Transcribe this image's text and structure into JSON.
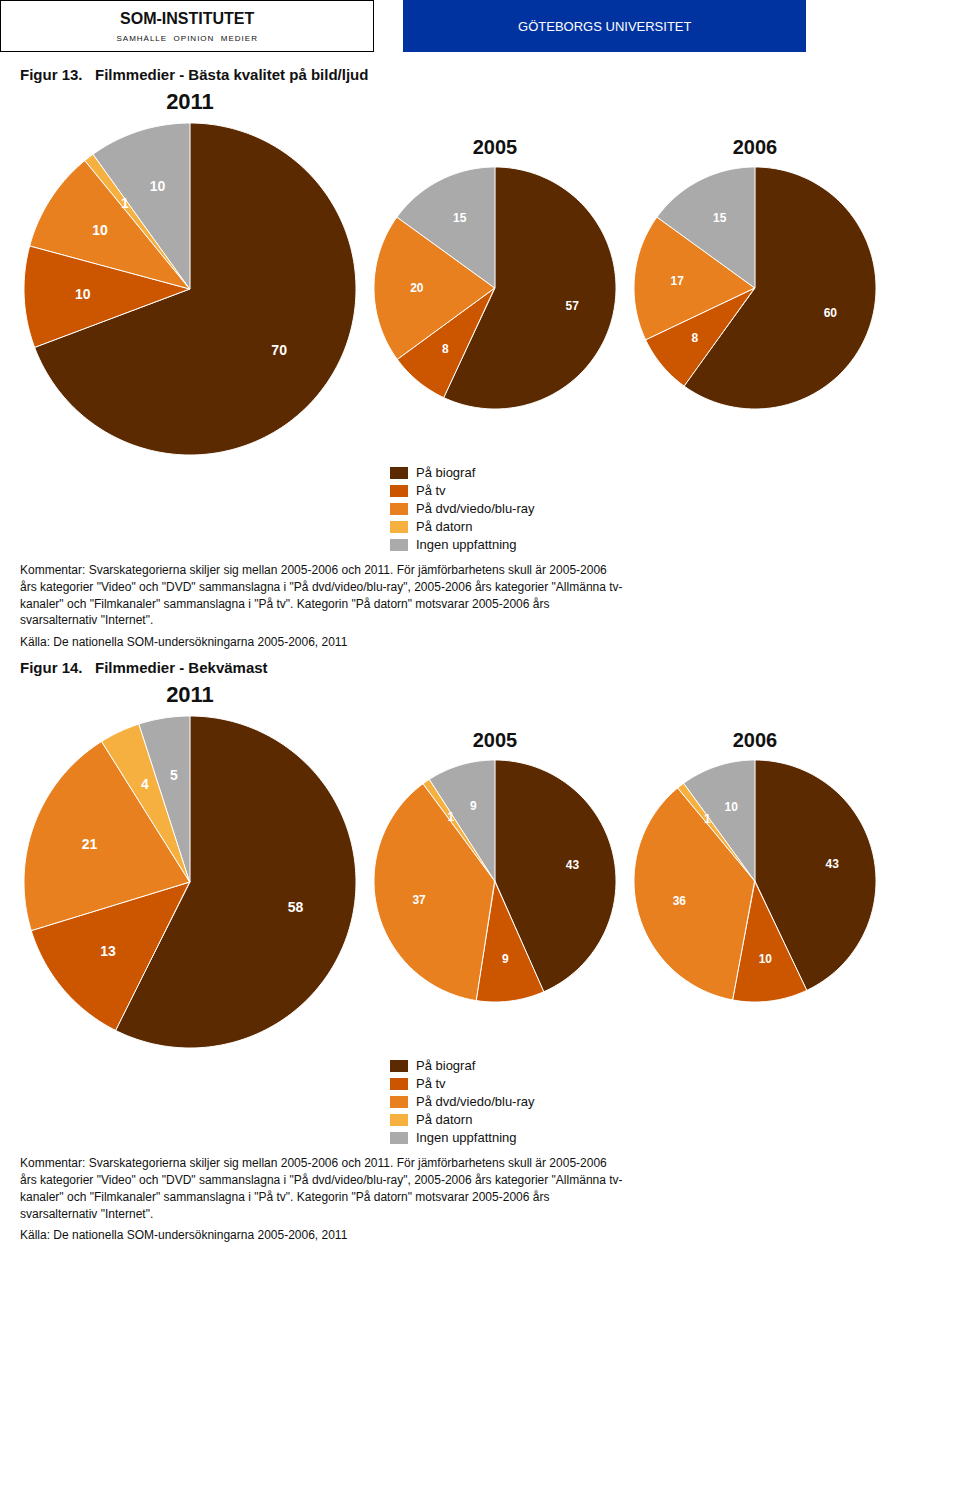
{
  "chart_data": [
    {
      "type": "pie",
      "title": "2011",
      "categories": [
        "På biograf",
        "På tv",
        "På dvd/viedo/blu-ray",
        "På datorn",
        "Ingen uppfattning"
      ],
      "values": [
        70,
        10,
        10,
        1,
        10
      ],
      "colors": [
        "#5C2A00",
        "#CC5500",
        "#E88020",
        "#F5B040",
        "#AAAAAA"
      ],
      "data_labels": true,
      "legend": "bottom",
      "annotations": [
        "SOM-INSTITUTET",
        "SAMHÄLLE  OPINION  MEDIER",
        "GÖTEBORGS UNIVERSITET",
        "Figur 13.   Filmmedier - Bästa kvalitet på bild/ljud",
        "Kommentar: Svarskategorierna skiljer sig mellan 2005-2006 och 2011. För jämförbarhetens skull är 2005-2006\nårs kategorier \"Video\" och \"DVD\" sammanslagna i \"På dvd/video/blu-ray\", 2005-2006 års kategorier \"Allmänna tv-\nkanaler\" och \"Filmkanaler\" sammanslagna i \"På tv\". Kategorin \"På datorn\" motsvarar 2005-2006 års\nsvarsalternativ \"Internet\".",
        "Källa: De nationella SOM-undersökningarna 2005-2006, 2011"
      ]
    },
    {
      "type": "pie",
      "title": "2005",
      "categories": [
        "På biograf",
        "På tv",
        "På dvd/viedo/blu-ray",
        "På datorn",
        "Ingen uppfattning"
      ],
      "values": [
        57,
        8,
        20,
        0,
        15
      ],
      "colors": [
        "#5C2A00",
        "#CC5500",
        "#E88020",
        "#F5B040",
        "#AAAAAA"
      ],
      "data_labels": true
    },
    {
      "type": "pie",
      "title": "2006",
      "categories": [
        "På biograf",
        "På tv",
        "På dvd/viedo/blu-ray",
        "På datorn",
        "Ingen uppfattning"
      ],
      "values": [
        60,
        8,
        17,
        0,
        15
      ],
      "colors": [
        "#5C2A00",
        "#CC5500",
        "#E88020",
        "#F5B040",
        "#AAAAAA"
      ],
      "data_labels": true
    },
    {
      "type": "pie",
      "title": "2011",
      "categories": [
        "På biograf",
        "På tv",
        "På dvd/viedo/blu-ray",
        "På datorn",
        "Ingen uppfattning"
      ],
      "values": [
        58,
        13,
        21,
        4,
        5
      ],
      "colors": [
        "#5C2A00",
        "#CC5500",
        "#E88020",
        "#F5B040",
        "#AAAAAA"
      ],
      "data_labels": true,
      "legend": "bottom",
      "annotations": [
        "Figur 14.   Filmmedier - Bekvämast",
        "Kommentar: Svarskategorierna skiljer sig mellan 2005-2006 och 2011. För jämförbarhetens skull är 2005-2006\nårs kategorier \"Video\" och \"DVD\" sammanslagna i \"På dvd/video/blu-ray\", 2005-2006 års kategorier \"Allmänna tv-\nkanaler\" och \"Filmkanaler\" sammanslagna i \"På tv\". Kategorin \"På datorn\" motsvarar 2005-2006 års\nsvarsalternativ \"Internet\".",
        "Källa: De nationella SOM-undersökningarna 2005-2006, 2011"
      ]
    },
    {
      "type": "pie",
      "title": "2005",
      "categories": [
        "På biograf",
        "På tv",
        "På dvd/viedo/blu-ray",
        "På datorn",
        "Ingen uppfattning"
      ],
      "values": [
        43,
        9,
        37,
        1,
        9
      ],
      "colors": [
        "#5C2A00",
        "#CC5500",
        "#E88020",
        "#F5B040",
        "#AAAAAA"
      ],
      "data_labels": true
    },
    {
      "type": "pie",
      "title": "2006",
      "categories": [
        "På biograf",
        "På tv",
        "På dvd/viedo/blu-ray",
        "På datorn",
        "Ingen uppfattning"
      ],
      "values": [
        43,
        10,
        36,
        1,
        10
      ],
      "colors": [
        "#5C2A00",
        "#CC5500",
        "#E88020",
        "#F5B040",
        "#AAAAAA"
      ],
      "data_labels": true
    }
  ]
}
